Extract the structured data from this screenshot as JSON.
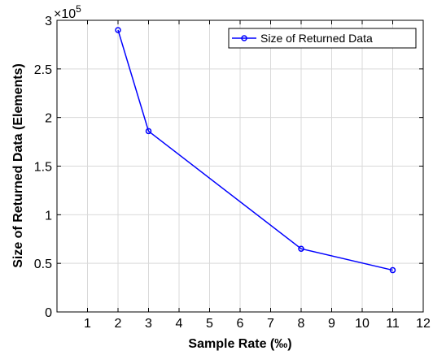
{
  "chart_data": {
    "type": "line",
    "xlabel": "Sample Rate (‰)",
    "ylabel": "Size of Returned Data (Elements)",
    "xlim": [
      0,
      12
    ],
    "ylim": [
      0,
      300000
    ],
    "x_ticks": [
      1,
      2,
      3,
      4,
      5,
      6,
      7,
      8,
      9,
      10,
      11,
      12
    ],
    "y_ticks": [
      0,
      0.5,
      1,
      1.5,
      2,
      2.5,
      3
    ],
    "y_tick_labels": [
      "0",
      "0.5",
      "1",
      "1.5",
      "2",
      "2.5",
      "3"
    ],
    "y_multiplier": {
      "base": "×10",
      "exponent": "5"
    },
    "grid": true,
    "legend": {
      "position": "top-right"
    },
    "series": [
      {
        "name": "Size of Returned Data",
        "color": "#0000ff",
        "marker": "circle",
        "x": [
          2,
          3,
          8,
          11
        ],
        "y": [
          290000,
          186000,
          65000,
          43000
        ]
      }
    ]
  }
}
